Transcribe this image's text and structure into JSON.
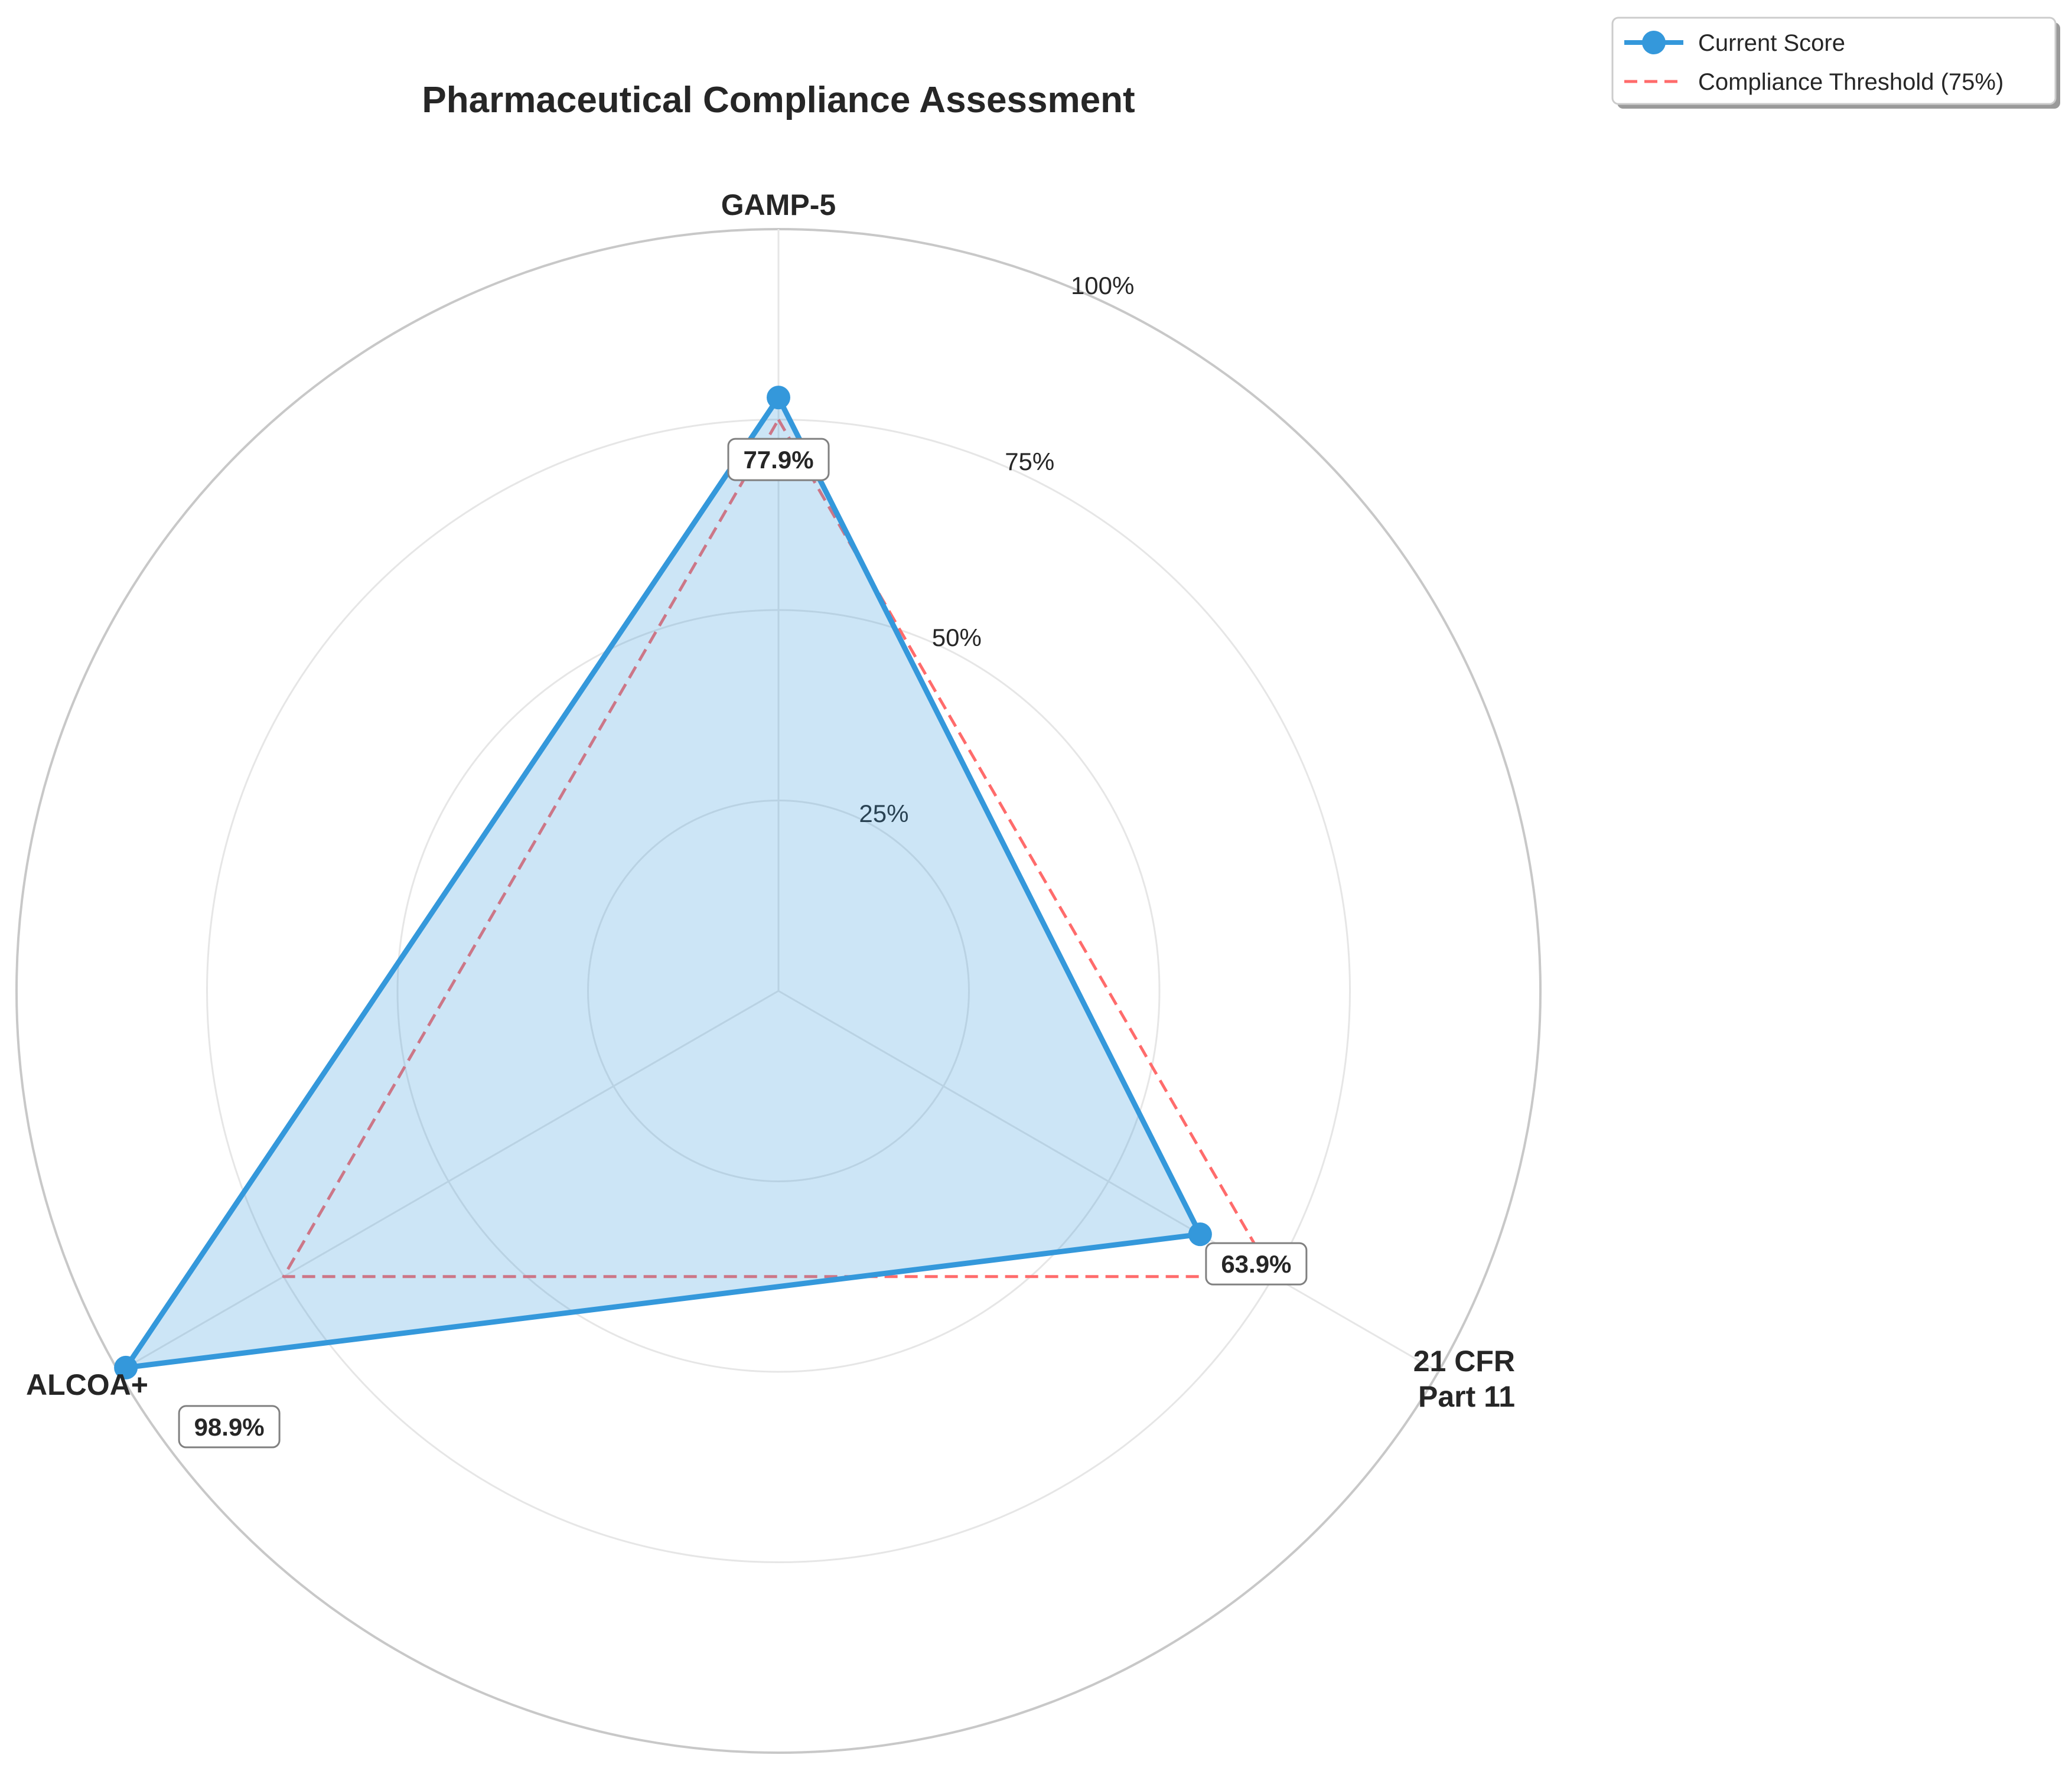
{
  "chart_data": {
    "type": "radar",
    "title": "Pharmaceutical Compliance Assessment",
    "categories": [
      "GAMP-5",
      "21 CFR\nPart 11",
      "ALCOA+"
    ],
    "rlim": [
      0,
      100
    ],
    "radial_ticks": [
      25,
      50,
      75,
      100
    ],
    "radial_tick_labels": [
      "25%",
      "50%",
      "75%",
      "100%"
    ],
    "series": [
      {
        "name": "Current Score",
        "values": [
          77.9,
          63.9,
          98.9
        ],
        "value_labels": [
          "77.9%",
          "63.9%",
          "98.9%"
        ],
        "color": "#3498db",
        "fill": true,
        "markers": true
      },
      {
        "name": "Compliance Threshold (75%)",
        "values": [
          75,
          75,
          75
        ],
        "color": "#ff6b6b",
        "line_style": "dashed"
      }
    ],
    "legend": {
      "placement": "top-right"
    },
    "grid": true
  },
  "colors": {
    "grid": "#e6e6e6",
    "outer_ring": "#c8c8c8",
    "text": "#262626",
    "label_box_border": "#808080"
  }
}
